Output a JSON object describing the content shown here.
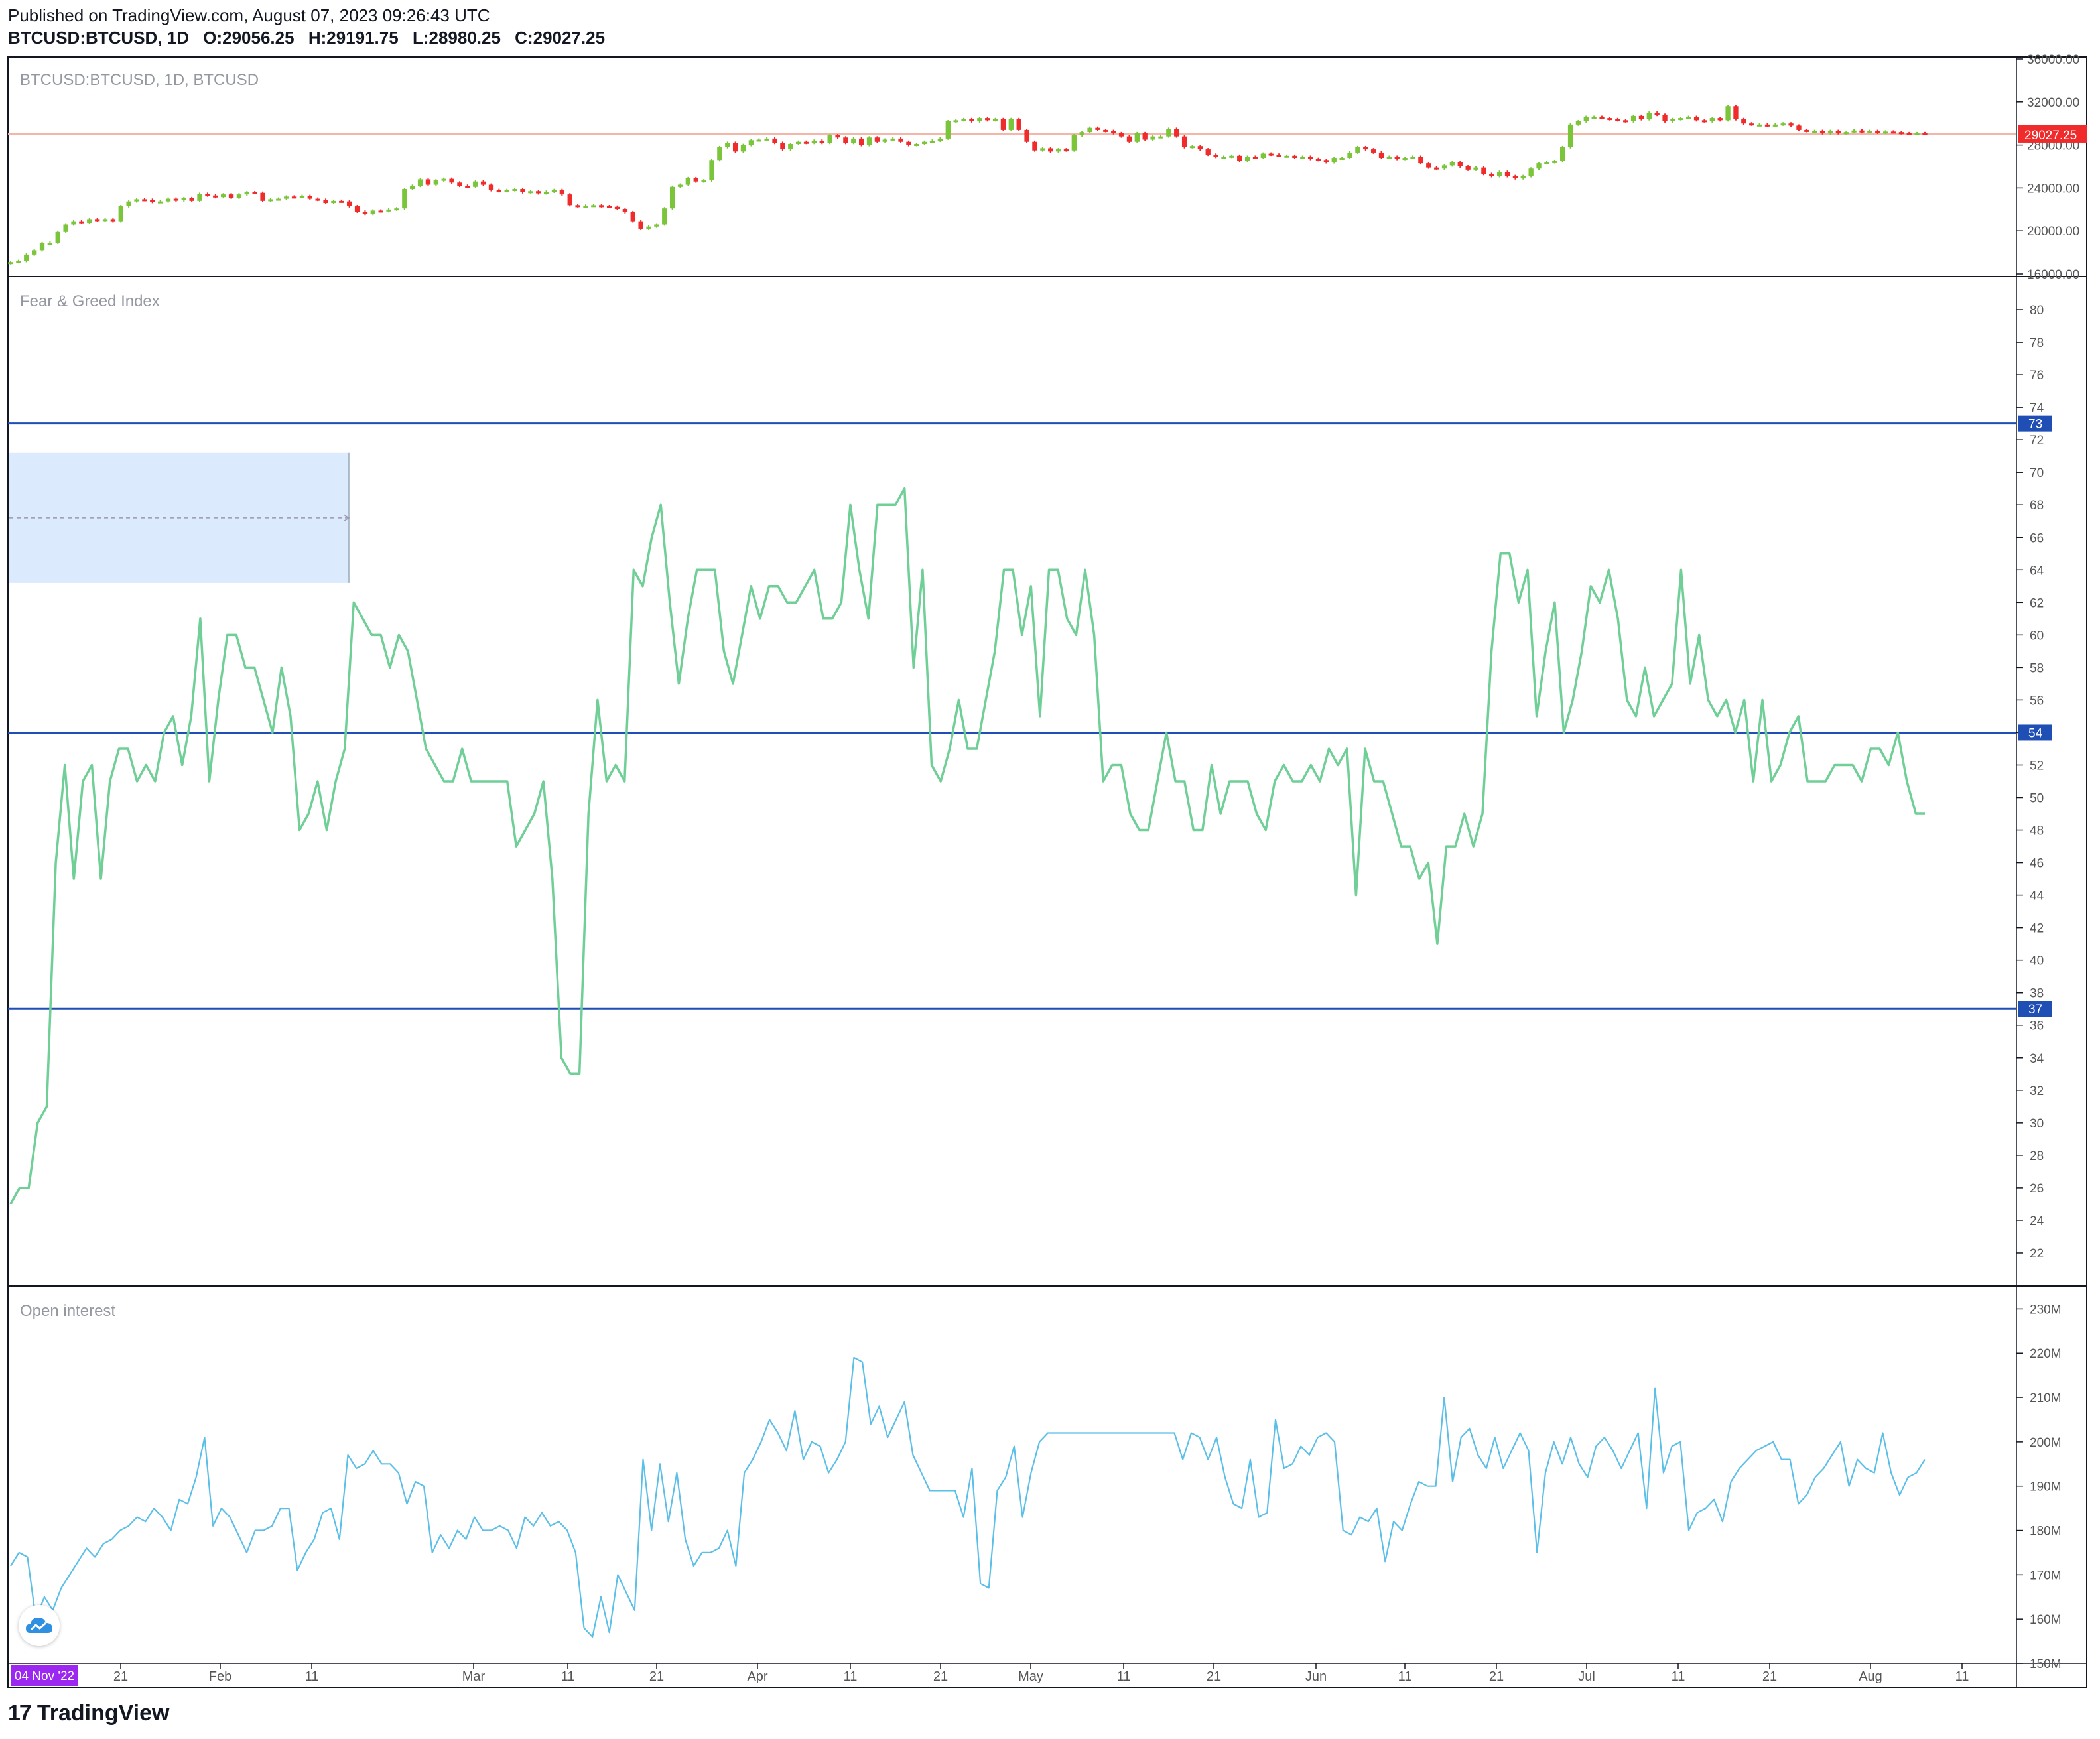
{
  "header": {
    "published": "Published on TradingView.com, August 07, 2023 09:26:43 UTC",
    "symbol": "BTCUSD:BTCUSD, 1D",
    "o_label": "O:",
    "o_value": "29056.25",
    "h_label": "H:",
    "h_value": "29191.75",
    "l_label": "L:",
    "l_value": "28980.25",
    "c_label": "C:",
    "c_value": "29027.25"
  },
  "brand": {
    "logo": "17",
    "name": "TradingView",
    "float_icon": "tradingview-cloud-icon"
  },
  "colors": {
    "up": "#7ac53a",
    "down": "#ef2b2b",
    "fgi": "#6fcf97",
    "oi": "#5bbfe8",
    "hline": "#1f4fb5",
    "select": "#dbeafd",
    "price_tag": "#ef2b2b",
    "date_tag": "#9c27f0"
  },
  "chart_data": [
    {
      "type": "candlestick",
      "title": "BTCUSD:BTCUSD, 1D, BTCUSD",
      "ylim": [
        16000,
        36000
      ],
      "yticks": [
        "16000.00",
        "20000.00",
        "24000.00",
        "28000.00",
        "32000.00",
        "36000.00"
      ],
      "last_price_label": "29027.25",
      "last_price": 29027.25,
      "closes": [
        17100,
        17200,
        17800,
        18200,
        18850,
        18900,
        19900,
        20600,
        20900,
        20750,
        21100,
        20950,
        21100,
        20900,
        22300,
        22750,
        22950,
        22900,
        22700,
        22750,
        23000,
        22850,
        23050,
        22800,
        23450,
        23300,
        23150,
        23400,
        23100,
        23400,
        23600,
        23550,
        22800,
        22950,
        23000,
        23200,
        23150,
        23250,
        23000,
        22900,
        22600,
        22800,
        22750,
        22300,
        21800,
        21600,
        21900,
        21850,
        22000,
        22100,
        23900,
        24200,
        24800,
        24300,
        24700,
        24850,
        24500,
        24200,
        24100,
        24600,
        24300,
        23800,
        23700,
        23800,
        23900,
        23600,
        23700,
        23500,
        23650,
        23800,
        23400,
        22400,
        22300,
        22350,
        22400,
        22300,
        22250,
        22050,
        21750,
        20900,
        20200,
        20400,
        20600,
        22100,
        24100,
        24300,
        24900,
        24600,
        24700,
        26600,
        27800,
        28200,
        27400,
        28000,
        28450,
        28500,
        28600,
        28200,
        27600,
        28100,
        28300,
        28200,
        28400,
        28200,
        28900,
        28700,
        28200,
        28600,
        28000,
        28700,
        28300,
        28500,
        28600,
        28300,
        28000,
        28100,
        28300,
        28400,
        28600,
        30200,
        30300,
        30400,
        30200,
        30500,
        30300,
        30400,
        29400,
        30400,
        29400,
        28300,
        27500,
        27700,
        27400,
        27600,
        27500,
        28900,
        29200,
        29600,
        29400,
        29300,
        29100,
        28800,
        28300,
        29100,
        28500,
        28800,
        28800,
        29500,
        28800,
        27800,
        27900,
        27600,
        27100,
        26900,
        26900,
        27000,
        26500,
        26900,
        26800,
        27200,
        27100,
        27000,
        27000,
        26800,
        26900,
        26700,
        26600,
        26400,
        26800,
        26800,
        27300,
        27800,
        27600,
        27300,
        26800,
        26900,
        26700,
        26800,
        26900,
        26300,
        25900,
        25800,
        26100,
        26400,
        26000,
        25700,
        25900,
        25300,
        25100,
        25500,
        25100,
        24900,
        25100,
        25800,
        26300,
        26400,
        26500,
        27800,
        29900,
        30200,
        30600,
        30600,
        30500,
        30400,
        30300,
        30200,
        30700,
        30400,
        31000,
        30800,
        30200,
        30400,
        30500,
        30600,
        30300,
        30200,
        30500,
        30300,
        31600,
        30400,
        30000,
        29900,
        29900,
        29800,
        29900,
        30000,
        29800,
        29400,
        29300,
        29300,
        29100,
        29300,
        29100,
        29200,
        29350,
        29200,
        29300,
        29150,
        29250,
        29200,
        29100,
        29050,
        29100,
        29027
      ]
    },
    {
      "type": "line",
      "title": "Fear & Greed Index",
      "ylim": [
        20,
        82
      ],
      "yticks": [
        22,
        24,
        26,
        28,
        30,
        32,
        34,
        36,
        38,
        40,
        42,
        44,
        46,
        48,
        50,
        52,
        54,
        56,
        58,
        60,
        62,
        64,
        66,
        68,
        70,
        72,
        74,
        76,
        78,
        80
      ],
      "reference_lines": [
        73,
        54,
        37
      ],
      "values": [
        25,
        26,
        26,
        30,
        31,
        46,
        52,
        45,
        51,
        52,
        45,
        51,
        53,
        53,
        51,
        52,
        51,
        54,
        55,
        52,
        55,
        61,
        51,
        56,
        60,
        60,
        58,
        58,
        56,
        54,
        58,
        55,
        48,
        49,
        51,
        48,
        51,
        53,
        62,
        61,
        60,
        60,
        58,
        60,
        59,
        56,
        53,
        52,
        51,
        51,
        53,
        51,
        51,
        51,
        51,
        51,
        47,
        48,
        49,
        51,
        45,
        34,
        33,
        33,
        49,
        56,
        51,
        52,
        51,
        64,
        63,
        66,
        68,
        62,
        57,
        61,
        64,
        64,
        64,
        59,
        57,
        60,
        63,
        61,
        63,
        63,
        62,
        62,
        63,
        64,
        61,
        61,
        62,
        68,
        64,
        61,
        68,
        68,
        68,
        69,
        58,
        64,
        52,
        51,
        53,
        56,
        53,
        53,
        56,
        59,
        64,
        64,
        60,
        63,
        55,
        64,
        64,
        61,
        60,
        64,
        60,
        51,
        52,
        52,
        49,
        48,
        48,
        51,
        54,
        51,
        51,
        48,
        48,
        52,
        49,
        51,
        51,
        51,
        49,
        48,
        51,
        52,
        51,
        51,
        52,
        51,
        53,
        52,
        53,
        44,
        53,
        51,
        51,
        49,
        47,
        47,
        45,
        46,
        41,
        47,
        47,
        49,
        47,
        49,
        59,
        65,
        65,
        62,
        64,
        55,
        59,
        62,
        54,
        56,
        59,
        63,
        62,
        64,
        61,
        56,
        55,
        58,
        55,
        56,
        57,
        64,
        57,
        60,
        56,
        55,
        56,
        54,
        56,
        51,
        56,
        51,
        52,
        54,
        55,
        51,
        51,
        51,
        52,
        52,
        52,
        51,
        53,
        53,
        52,
        54,
        51,
        49,
        49
      ]
    },
    {
      "type": "line",
      "title": "Open interest",
      "ylim": [
        150,
        235
      ],
      "yticks": [
        "150M",
        "160M",
        "170M",
        "180M",
        "190M",
        "200M",
        "210M",
        "220M",
        "230M"
      ],
      "values": [
        172,
        175,
        174,
        160,
        165,
        162,
        167,
        170,
        173,
        176,
        174,
        177,
        178,
        180,
        181,
        183,
        182,
        185,
        183,
        180,
        187,
        186,
        192,
        201,
        181,
        185,
        183,
        179,
        175,
        180,
        180,
        181,
        185,
        185,
        171,
        175,
        178,
        184,
        185,
        178,
        197,
        194,
        195,
        198,
        195,
        195,
        193,
        186,
        191,
        190,
        175,
        179,
        176,
        180,
        178,
        183,
        180,
        180,
        181,
        180,
        176,
        183,
        181,
        184,
        181,
        182,
        180,
        175,
        158,
        156,
        165,
        157,
        170,
        166,
        162,
        196,
        180,
        195,
        182,
        193,
        178,
        172,
        175,
        175,
        176,
        180,
        172,
        193,
        196,
        200,
        205,
        202,
        198,
        207,
        196,
        200,
        199,
        193,
        196,
        200,
        219,
        218,
        204,
        208,
        201,
        205,
        209,
        197,
        193,
        189,
        189,
        189,
        189,
        183,
        194,
        168,
        167,
        189,
        192,
        199,
        183,
        193,
        200,
        202,
        202,
        202,
        202,
        202,
        202,
        202,
        202,
        202,
        202,
        202,
        202,
        202,
        202,
        202,
        202,
        196,
        202,
        201,
        196,
        201,
        192,
        186,
        185,
        196,
        183,
        184,
        205,
        194,
        195,
        199,
        197,
        201,
        202,
        200,
        180,
        179,
        183,
        182,
        185,
        173,
        182,
        180,
        186,
        191,
        190,
        190,
        210,
        191,
        201,
        203,
        197,
        194,
        201,
        194,
        198,
        202,
        198,
        175,
        193,
        200,
        195,
        201,
        195,
        192,
        199,
        201,
        198,
        194,
        198,
        202,
        185,
        212,
        193,
        199,
        200,
        180,
        184,
        185,
        187,
        182,
        191,
        194,
        196,
        198,
        199,
        200,
        196,
        196,
        186,
        188,
        192,
        194,
        197,
        200,
        190,
        196,
        194,
        193,
        202,
        193,
        188,
        192,
        193,
        196
      ]
    }
  ],
  "xaxis": {
    "ticks": [
      "21",
      "Feb",
      "11",
      "Mar",
      "11",
      "21",
      "Apr",
      "11",
      "21",
      "May",
      "11",
      "21",
      "Jun",
      "11",
      "21",
      "Jul",
      "11",
      "21",
      "Aug",
      "11"
    ],
    "start_label": "04 Nov '22"
  }
}
